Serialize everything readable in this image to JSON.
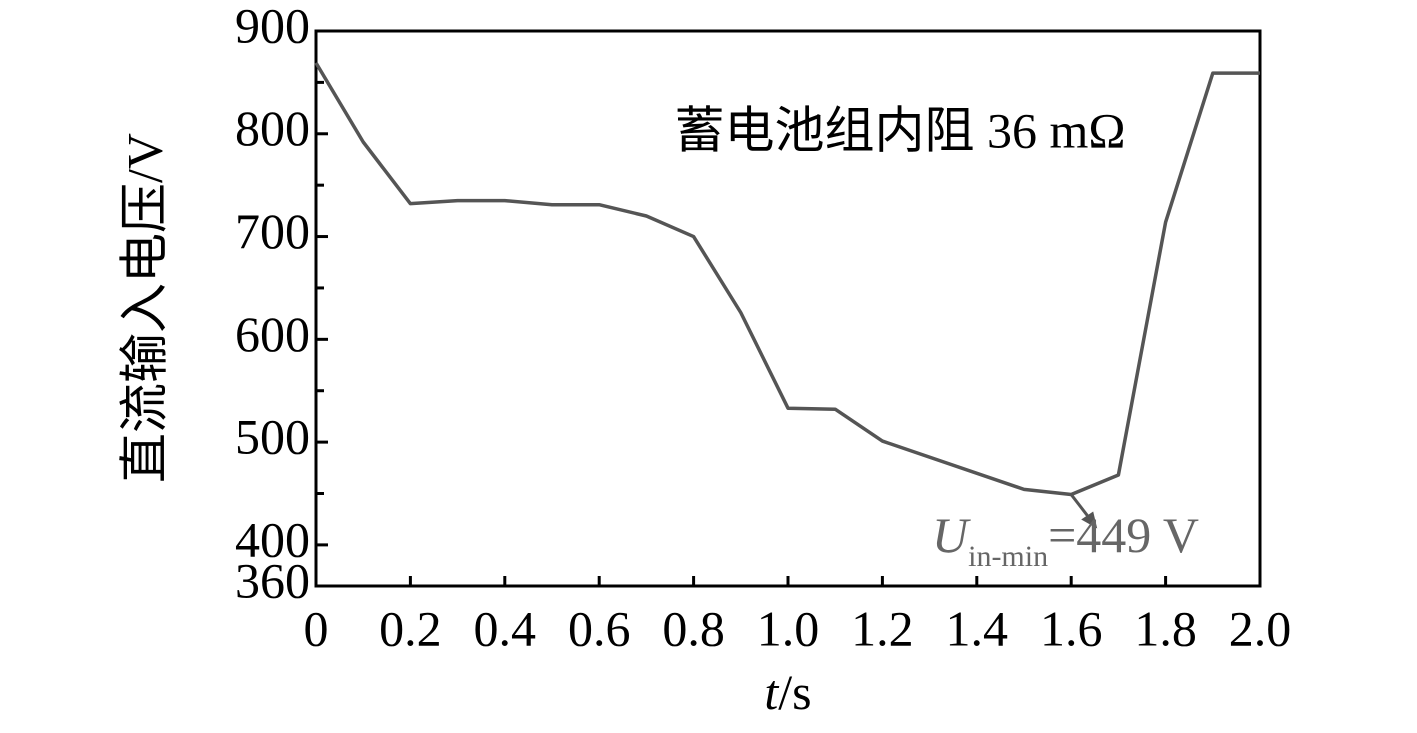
{
  "chart_data": {
    "type": "line",
    "title": "蓄电池组内阻 36 mΩ",
    "x_label": "t/s",
    "y_label": "直流输入电压/V",
    "x": [
      0,
      0.1,
      0.2,
      0.3,
      0.4,
      0.5,
      0.6,
      0.7,
      0.8,
      0.9,
      1.0,
      1.1,
      1.2,
      1.5,
      1.6,
      1.7,
      1.8,
      1.9,
      2.0
    ],
    "series": [
      {
        "color": "#555555",
        "values": [
          869,
          792,
          732,
          735,
          735,
          731,
          731,
          720,
          700,
          626,
          533,
          532,
          501,
          454,
          449,
          468,
          714,
          859,
          859
        ]
      }
    ],
    "xlim": [
      0,
      2.0
    ],
    "ylim": [
      360,
      900
    ],
    "xticks": [
      0,
      0.2,
      0.4,
      0.6,
      0.8,
      {
        "value": 1.0,
        "label": "1.0"
      },
      1.2,
      1.4,
      1.6,
      1.8,
      {
        "value": 2.0,
        "label": "2.0"
      }
    ],
    "yticks": [
      360,
      400,
      500,
      600,
      700,
      800,
      900
    ],
    "yminor_ticks": [
      450,
      550,
      650,
      750,
      850
    ],
    "annotation": {
      "symbol": "U",
      "subscript": "in-min",
      "text": "=449 V",
      "x": 1.6,
      "y": 449
    }
  }
}
